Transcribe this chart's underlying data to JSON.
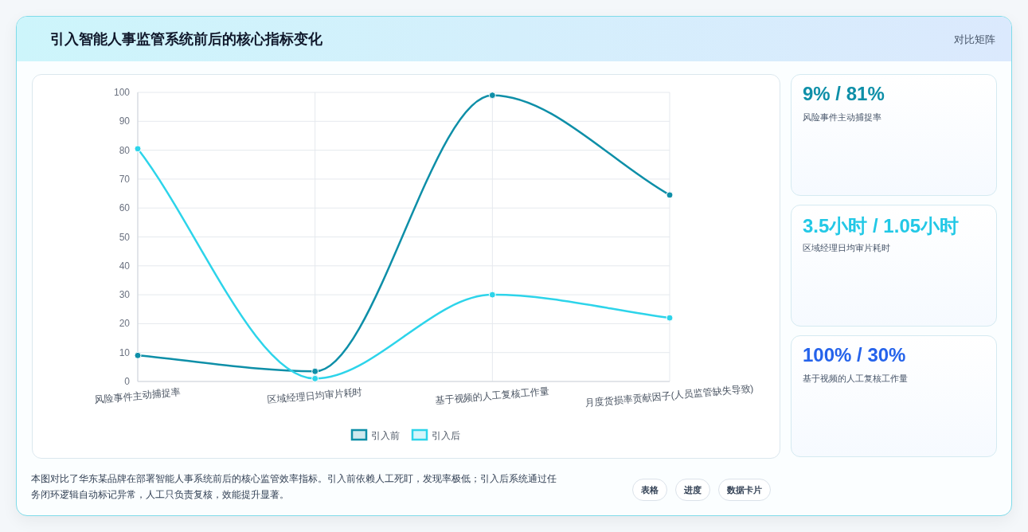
{
  "chart_data": [
    {
      "type": "line",
      "title": "引入智能人事监管系统前后的核心指标变化",
      "categories": [
        "风险事件主动捕捉率",
        "区域经理日均审片耗时",
        "基于视频的人工复核工作量",
        "月度货损率贡献因子(人员监管缺失导致)"
      ],
      "series": [
        {
          "name": "引入前",
          "color": "#0e8fa8",
          "values": [
            9,
            3.5,
            99,
            64.5
          ]
        },
        {
          "name": "引入后",
          "color": "#2dd4ea",
          "values": [
            80.5,
            1,
            30,
            22
          ]
        }
      ],
      "ylim": [
        0,
        100
      ],
      "yticks": [
        0,
        10,
        20,
        30,
        40,
        50,
        60,
        70,
        80,
        90,
        100
      ],
      "grid": true,
      "legend": "bottom",
      "marker": "circle",
      "annotations": [
        "对比矩阵",
        "本图对比了华东某品牌在部署智能人事系统前后的核心监管效率指标。引入前依赖人工死盯，发现率极低；引入后系统通过任务闭环逻辑自动标记异常，人工只负责复核，效能提升显著。",
        "表格",
        "进度",
        "数据卡片"
      ]
    },
    {
      "type": "other",
      "annotations": [
        "9% / 81%",
        "风险事件主动捕捉率",
        "3.5小时 / 1.05小时",
        "区域经理日均审片耗时",
        "100% / 30%",
        "基于视频的人工复核工作量"
      ]
    }
  ]
}
